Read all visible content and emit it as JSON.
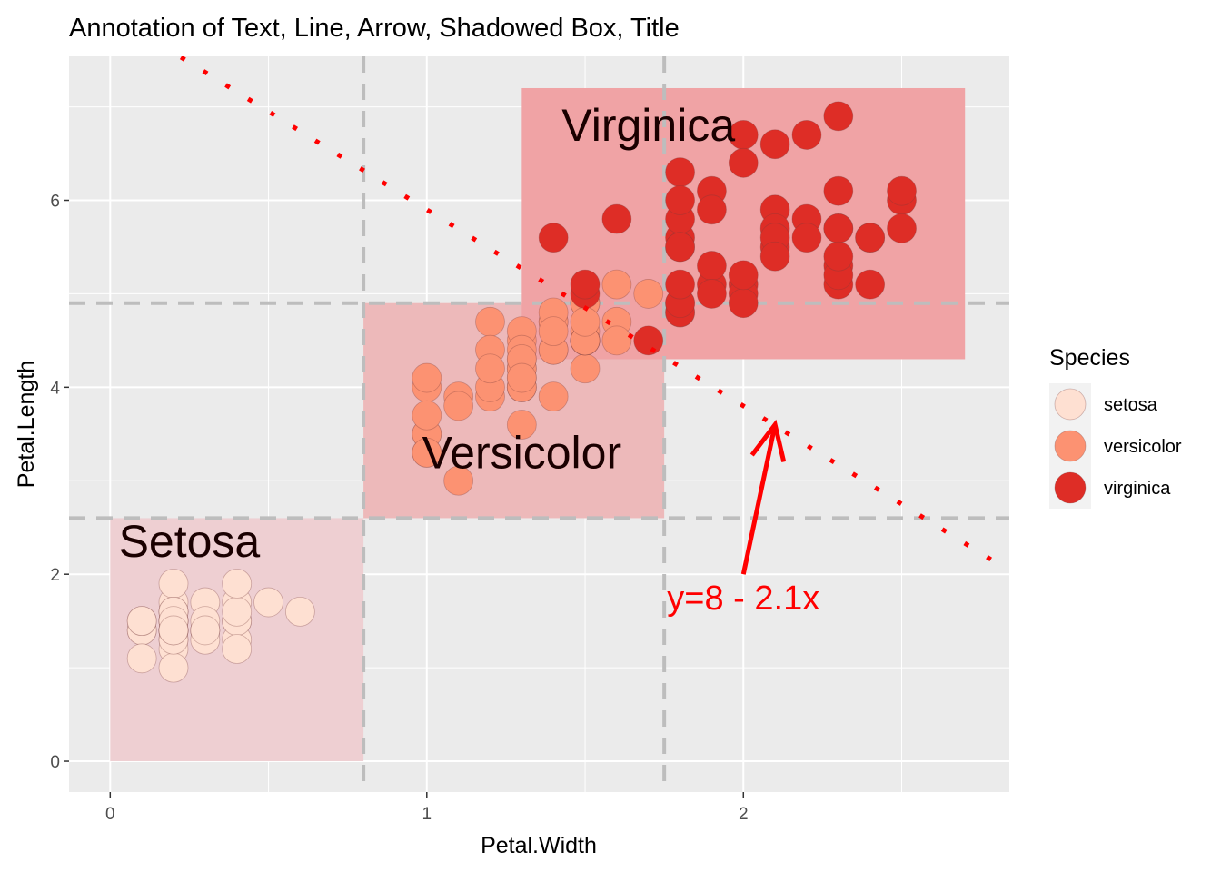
{
  "chart_data": {
    "type": "scatter",
    "title": "Annotation of Text, Line, Arrow, Shadowed Box, Title",
    "xlabel": "Petal.Width",
    "ylabel": "Petal.Length",
    "xlim": [
      -0.13,
      2.84
    ],
    "ylim": [
      -0.33,
      7.54
    ],
    "x_ticks": [
      0,
      1,
      2
    ],
    "y_ticks": [
      0,
      2,
      4,
      6
    ],
    "x_tick_labels": [
      "0",
      "1",
      "2"
    ],
    "y_tick_labels": [
      "0",
      "2",
      "4",
      "6"
    ],
    "grid": true,
    "legend": {
      "title": "Species",
      "position": "right",
      "items": [
        {
          "label": "setosa",
          "color": "#fee0d2"
        },
        {
          "label": "versicolor",
          "color": "#fc9272"
        },
        {
          "label": "virginica",
          "color": "#de2d26"
        }
      ]
    },
    "series": [
      {
        "name": "setosa",
        "color": "#fee0d2",
        "points": [
          [
            0.2,
            1.4
          ],
          [
            0.2,
            1.3
          ],
          [
            0.2,
            1.5
          ],
          [
            0.2,
            1.4
          ],
          [
            0.4,
            1.7
          ],
          [
            0.3,
            1.4
          ],
          [
            0.2,
            1.5
          ],
          [
            0.1,
            1.4
          ],
          [
            0.2,
            1.5
          ],
          [
            0.2,
            1.6
          ],
          [
            0.1,
            1.4
          ],
          [
            0.1,
            1.1
          ],
          [
            0.2,
            1.2
          ],
          [
            0.4,
            1.5
          ],
          [
            0.4,
            1.3
          ],
          [
            0.3,
            1.4
          ],
          [
            0.3,
            1.7
          ],
          [
            0.3,
            1.5
          ],
          [
            0.2,
            1.7
          ],
          [
            0.4,
            1.5
          ],
          [
            0.2,
            1.0
          ],
          [
            0.5,
            1.7
          ],
          [
            0.2,
            1.9
          ],
          [
            0.2,
            1.6
          ],
          [
            0.4,
            1.6
          ],
          [
            0.2,
            1.4
          ],
          [
            0.1,
            1.5
          ],
          [
            0.2,
            1.3
          ],
          [
            0.3,
            1.3
          ],
          [
            0.6,
            1.6
          ],
          [
            0.4,
            1.9
          ],
          [
            0.3,
            1.4
          ],
          [
            0.2,
            1.6
          ],
          [
            0.2,
            1.4
          ],
          [
            0.2,
            1.5
          ],
          [
            0.2,
            1.4
          ],
          [
            0.1,
            1.5
          ],
          [
            0.4,
            1.2
          ]
        ]
      },
      {
        "name": "versicolor",
        "color": "#fc9272",
        "points": [
          [
            1.4,
            4.7
          ],
          [
            1.5,
            4.5
          ],
          [
            1.5,
            4.9
          ],
          [
            1.3,
            4.0
          ],
          [
            1.5,
            4.6
          ],
          [
            1.3,
            4.5
          ],
          [
            1.6,
            4.7
          ],
          [
            1.0,
            3.3
          ],
          [
            1.3,
            4.6
          ],
          [
            1.4,
            3.9
          ],
          [
            1.0,
            3.5
          ],
          [
            1.5,
            4.2
          ],
          [
            1.0,
            4.0
          ],
          [
            1.4,
            4.7
          ],
          [
            1.3,
            3.6
          ],
          [
            1.4,
            4.4
          ],
          [
            1.5,
            4.5
          ],
          [
            1.0,
            4.1
          ],
          [
            1.5,
            4.5
          ],
          [
            1.1,
            3.9
          ],
          [
            1.8,
            4.8
          ],
          [
            1.3,
            4.0
          ],
          [
            1.5,
            4.9
          ],
          [
            1.2,
            4.7
          ],
          [
            1.3,
            4.3
          ],
          [
            1.4,
            4.4
          ],
          [
            1.4,
            4.8
          ],
          [
            1.7,
            5.0
          ],
          [
            1.5,
            4.5
          ],
          [
            1.0,
            3.5
          ],
          [
            1.1,
            3.8
          ],
          [
            1.0,
            3.7
          ],
          [
            1.2,
            3.9
          ],
          [
            1.6,
            5.1
          ],
          [
            1.5,
            4.5
          ],
          [
            1.6,
            4.5
          ],
          [
            1.5,
            4.7
          ],
          [
            1.3,
            4.4
          ],
          [
            1.3,
            4.1
          ],
          [
            1.3,
            4.0
          ],
          [
            1.2,
            4.4
          ],
          [
            1.4,
            4.6
          ],
          [
            1.2,
            4.0
          ],
          [
            1.0,
            3.3
          ],
          [
            1.3,
            4.2
          ],
          [
            1.2,
            4.2
          ],
          [
            1.3,
            4.2
          ],
          [
            1.3,
            4.3
          ],
          [
            1.1,
            3.0
          ],
          [
            1.3,
            4.1
          ]
        ]
      },
      {
        "name": "virginica",
        "color": "#de2d26",
        "points": [
          [
            2.5,
            6.0
          ],
          [
            1.9,
            5.1
          ],
          [
            2.1,
            5.9
          ],
          [
            1.8,
            5.6
          ],
          [
            2.2,
            5.8
          ],
          [
            2.1,
            6.6
          ],
          [
            1.7,
            4.5
          ],
          [
            1.8,
            6.3
          ],
          [
            1.8,
            5.8
          ],
          [
            2.5,
            6.1
          ],
          [
            2.0,
            5.1
          ],
          [
            1.9,
            5.3
          ],
          [
            2.1,
            5.5
          ],
          [
            2.0,
            5.0
          ],
          [
            2.4,
            5.1
          ],
          [
            2.3,
            5.3
          ],
          [
            1.8,
            5.5
          ],
          [
            2.2,
            6.7
          ],
          [
            2.3,
            6.9
          ],
          [
            1.5,
            5.0
          ],
          [
            2.3,
            5.7
          ],
          [
            2.0,
            4.9
          ],
          [
            2.0,
            6.7
          ],
          [
            1.8,
            4.9
          ],
          [
            2.1,
            5.7
          ],
          [
            1.8,
            6.0
          ],
          [
            1.8,
            4.8
          ],
          [
            1.8,
            4.9
          ],
          [
            2.1,
            5.6
          ],
          [
            1.6,
            5.8
          ],
          [
            1.9,
            6.1
          ],
          [
            2.0,
            6.4
          ],
          [
            2.2,
            5.6
          ],
          [
            1.5,
            5.1
          ],
          [
            1.4,
            5.6
          ],
          [
            2.3,
            6.1
          ],
          [
            2.4,
            5.6
          ],
          [
            1.8,
            5.5
          ],
          [
            2.1,
            5.4
          ],
          [
            2.4,
            5.6
          ],
          [
            2.3,
            5.1
          ],
          [
            1.9,
            5.9
          ],
          [
            2.3,
            5.7
          ],
          [
            2.5,
            5.7
          ],
          [
            2.3,
            5.2
          ],
          [
            1.9,
            5.0
          ],
          [
            2.0,
            5.2
          ],
          [
            2.3,
            5.4
          ],
          [
            1.8,
            5.1
          ]
        ]
      }
    ],
    "annotations": {
      "boxes": [
        {
          "label": "Setosa",
          "xmin": 0,
          "xmax": 0.8,
          "ymin": 0,
          "ymax": 2.6,
          "fill": "#eecfd2"
        },
        {
          "label": "Versicolor",
          "xmin": 0.8,
          "xmax": 1.75,
          "ymin": 2.6,
          "ymax": 4.9,
          "fill": "#edb9ba"
        },
        {
          "label": "Virginica",
          "xmin": 1.3,
          "xmax": 2.7,
          "ymin": 4.3,
          "ymax": 7.2,
          "fill": "#f0a3a5"
        }
      ],
      "texts": [
        {
          "label": "Setosa",
          "x": 0.25,
          "y": 2.35
        },
        {
          "label": "Versicolor",
          "x": 1.3,
          "y": 3.3
        },
        {
          "label": "Virginica",
          "x": 1.7,
          "y": 6.8
        }
      ],
      "vlines": [
        0.8,
        1.75
      ],
      "hlines": [
        2.6,
        4.9
      ],
      "abline": {
        "intercept": 8,
        "slope": -2.1,
        "color": "#ff0000"
      },
      "arrow": {
        "x_from": 2.0,
        "y_from": 2.0,
        "x_to": 2.1,
        "y_to": 3.6,
        "color": "#ff0000"
      },
      "equation": {
        "label": "y=8 - 2.1x",
        "x": 2.0,
        "y": 1.75
      }
    }
  }
}
